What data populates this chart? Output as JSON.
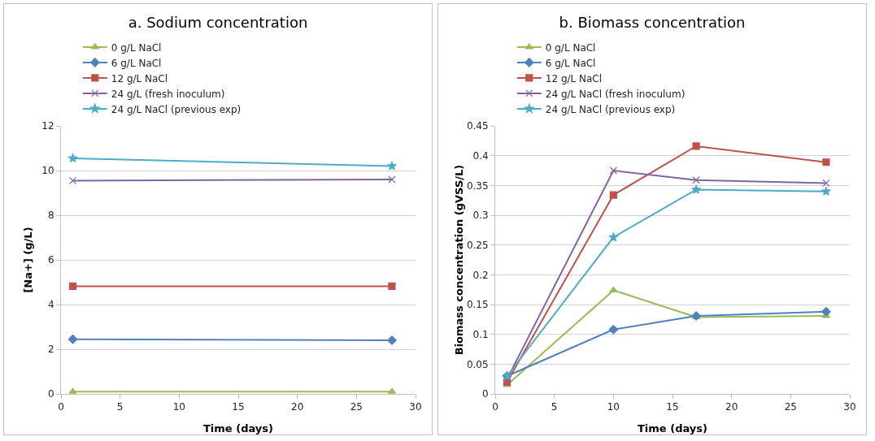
{
  "chart_data": [
    {
      "type": "line",
      "title": "a. Sodium concentration",
      "xlabel": "Time (days)",
      "ylabel": "[Na+] (g/L)",
      "x": [
        1,
        28
      ],
      "series": [
        {
          "name": "0 g/L NaCl",
          "color": "#9bbb59",
          "marker": "triangle",
          "values": [
            0.1,
            0.1
          ]
        },
        {
          "name": "6 g/L NaCl",
          "color": "#4f81bd",
          "marker": "diamond",
          "values": [
            2.45,
            2.4
          ]
        },
        {
          "name": "12 g/L NaCl",
          "color": "#c0504d",
          "marker": "square",
          "values": [
            4.82,
            4.82
          ]
        },
        {
          "name": "24 g/L (fresh inoculum)",
          "color": "#8064a2",
          "marker": "cross",
          "values": [
            9.55,
            9.6
          ]
        },
        {
          "name": "24 g/L NaCl (previous exp)",
          "color": "#4bacc6",
          "marker": "star",
          "values": [
            10.55,
            10.2
          ]
        }
      ],
      "xlim": [
        0,
        30
      ],
      "xticks": [
        0,
        5,
        10,
        15,
        20,
        25,
        30
      ],
      "ylim": [
        0,
        12
      ],
      "yticks": [
        0,
        2,
        4,
        6,
        8,
        10,
        12
      ],
      "grid": "y",
      "legend": "top"
    },
    {
      "type": "line",
      "title": "b. Biomass concentration",
      "xlabel": "Time (days)",
      "ylabel": "Biomass concentration (gVSS/L)",
      "x": [
        1,
        10,
        17,
        28
      ],
      "series": [
        {
          "name": "0 g/L NaCl",
          "color": "#9bbb59",
          "marker": "triangle",
          "values": [
            0.015,
            0.174,
            0.129,
            0.131
          ]
        },
        {
          "name": "6 g/L NaCl",
          "color": "#4f81bd",
          "marker": "diamond",
          "values": [
            0.03,
            0.108,
            0.131,
            0.138
          ]
        },
        {
          "name": "12 g/L NaCl",
          "color": "#c0504d",
          "marker": "square",
          "values": [
            0.02,
            0.334,
            0.416,
            0.389
          ]
        },
        {
          "name": "24 g/L NaCl (fresh inoculum)",
          "color": "#8064a2",
          "marker": "cross",
          "values": [
            0.025,
            0.375,
            0.359,
            0.354
          ]
        },
        {
          "name": "24 g/L NaCl (previous exp)",
          "color": "#4bacc6",
          "marker": "star",
          "values": [
            0.03,
            0.263,
            0.343,
            0.34
          ]
        }
      ],
      "xlim": [
        0,
        30
      ],
      "xticks": [
        0,
        5,
        10,
        15,
        20,
        25,
        30
      ],
      "ylim": [
        0,
        0.45
      ],
      "yticks": [
        0,
        0.05,
        0.1,
        0.15,
        0.2,
        0.25,
        0.3,
        0.35,
        0.4,
        0.45
      ],
      "grid": "y",
      "legend": "top"
    }
  ]
}
